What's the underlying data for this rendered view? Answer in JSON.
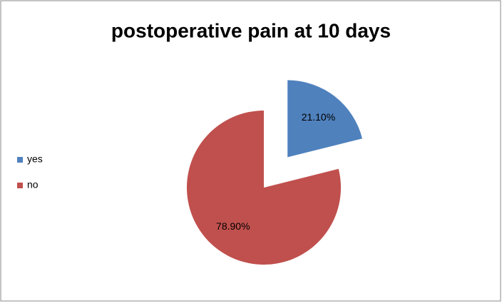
{
  "chart_data": {
    "type": "pie",
    "title": "postoperative pain at 10 days",
    "categories": [
      "yes",
      "no"
    ],
    "values": [
      21.1,
      78.9
    ],
    "value_labels": [
      "21.10%",
      "78.90%"
    ],
    "colors": [
      "#4f81bd",
      "#c0504d"
    ],
    "exploded": "yes",
    "legend": "left"
  }
}
